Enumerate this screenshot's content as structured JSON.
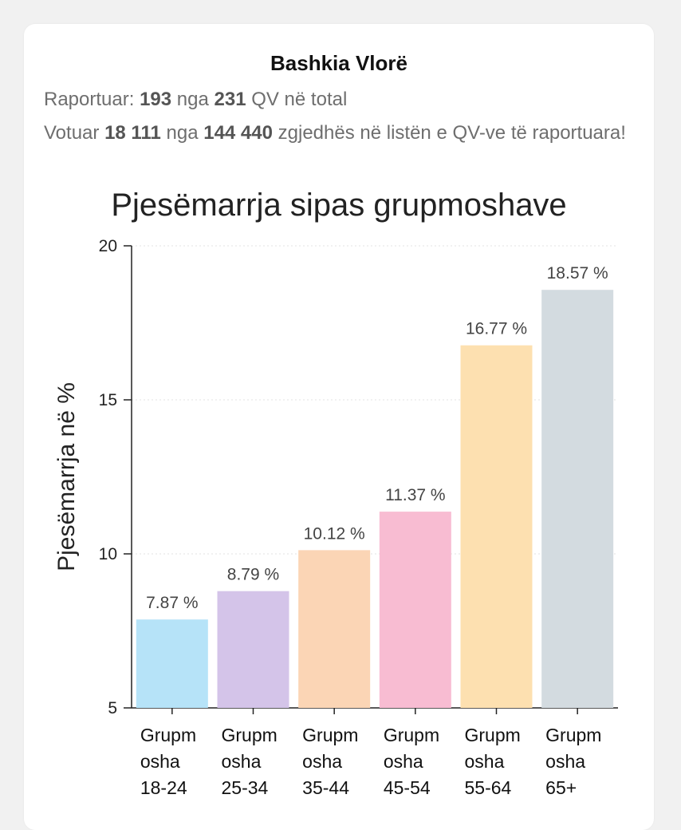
{
  "header": {
    "title": "Bashkia Vlorë",
    "reported_prefix": "Raportuar: ",
    "reported_count": "193",
    "reported_mid": " nga ",
    "reported_total": "231",
    "reported_suffix": " QV në total",
    "voted_prefix": "Votuar ",
    "voted_count": "18 111",
    "voted_mid": " nga ",
    "voted_total": "144 440",
    "voted_suffix": " zgjedhës në listën e QV-ve të raportuara!"
  },
  "chart_data": {
    "type": "bar",
    "title": "Pjesëmarrja sipas grupmoshave",
    "ylabel": "Pjesëmarrja në %",
    "xlabel": "",
    "ylim": [
      5,
      20
    ],
    "yticks": [
      5,
      10,
      15,
      20
    ],
    "grid": true,
    "categories": [
      [
        "Grupm",
        "osha",
        "18-24"
      ],
      [
        "Grupm",
        "osha",
        "25-34"
      ],
      [
        "Grupm",
        "osha",
        "35-44"
      ],
      [
        "Grupm",
        "osha",
        "45-54"
      ],
      [
        "Grupm",
        "osha",
        "55-64"
      ],
      [
        "Grupm",
        "osha",
        "65+"
      ]
    ],
    "values": [
      7.87,
      8.79,
      10.12,
      11.37,
      16.77,
      18.57
    ],
    "value_labels": [
      "7.87 %",
      "8.79 %",
      "10.12 %",
      "11.37 %",
      "16.77 %",
      "18.57 %"
    ],
    "colors": [
      "#b6e3f8",
      "#d4c4e9",
      "#fbd5b5",
      "#f8bcd2",
      "#fde0b0",
      "#d3dbe0"
    ]
  }
}
